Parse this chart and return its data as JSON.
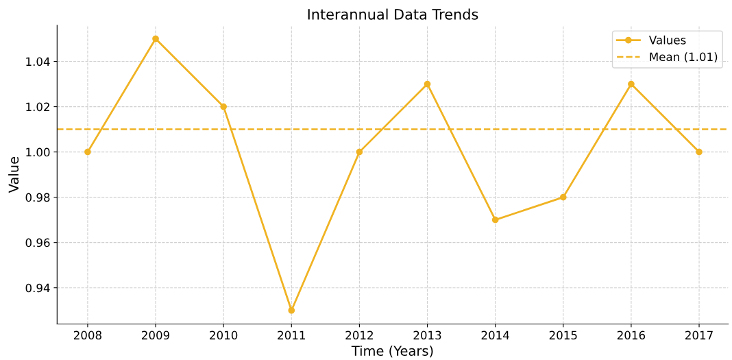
{
  "chart_data": {
    "type": "line",
    "title": "Interannual Data Trends",
    "xlabel": "Time (Years)",
    "ylabel": "Value",
    "x": [
      2008,
      2009,
      2010,
      2011,
      2012,
      2013,
      2014,
      2015,
      2016,
      2017
    ],
    "series": [
      {
        "name": "Values",
        "color": "#f0b323",
        "values": [
          1.0,
          1.05,
          1.02,
          0.93,
          1.0,
          1.03,
          0.97,
          0.98,
          1.03,
          1.0
        ]
      }
    ],
    "ref_lines": [
      {
        "axis": "y",
        "value": 1.01,
        "label": "Mean (1.01)",
        "color": "#f0b323",
        "line_style": "dashed"
      }
    ],
    "xlim": [
      2007.55,
      2017.43
    ],
    "ylim": [
      0.924,
      1.056
    ],
    "xticks": [
      2008,
      2009,
      2010,
      2011,
      2012,
      2013,
      2014,
      2015,
      2016,
      2017
    ],
    "yticks": [
      {
        "value": 0.94,
        "label": "0.94"
      },
      {
        "value": 0.96,
        "label": "0.96"
      },
      {
        "value": 0.98,
        "label": "0.98"
      },
      {
        "value": 1.0,
        "label": "1.00"
      },
      {
        "value": 1.02,
        "label": "1.02"
      },
      {
        "value": 1.04,
        "label": "1.04"
      }
    ],
    "grid": true,
    "legend": "top right",
    "marker": "circle",
    "line_style": "solid"
  }
}
